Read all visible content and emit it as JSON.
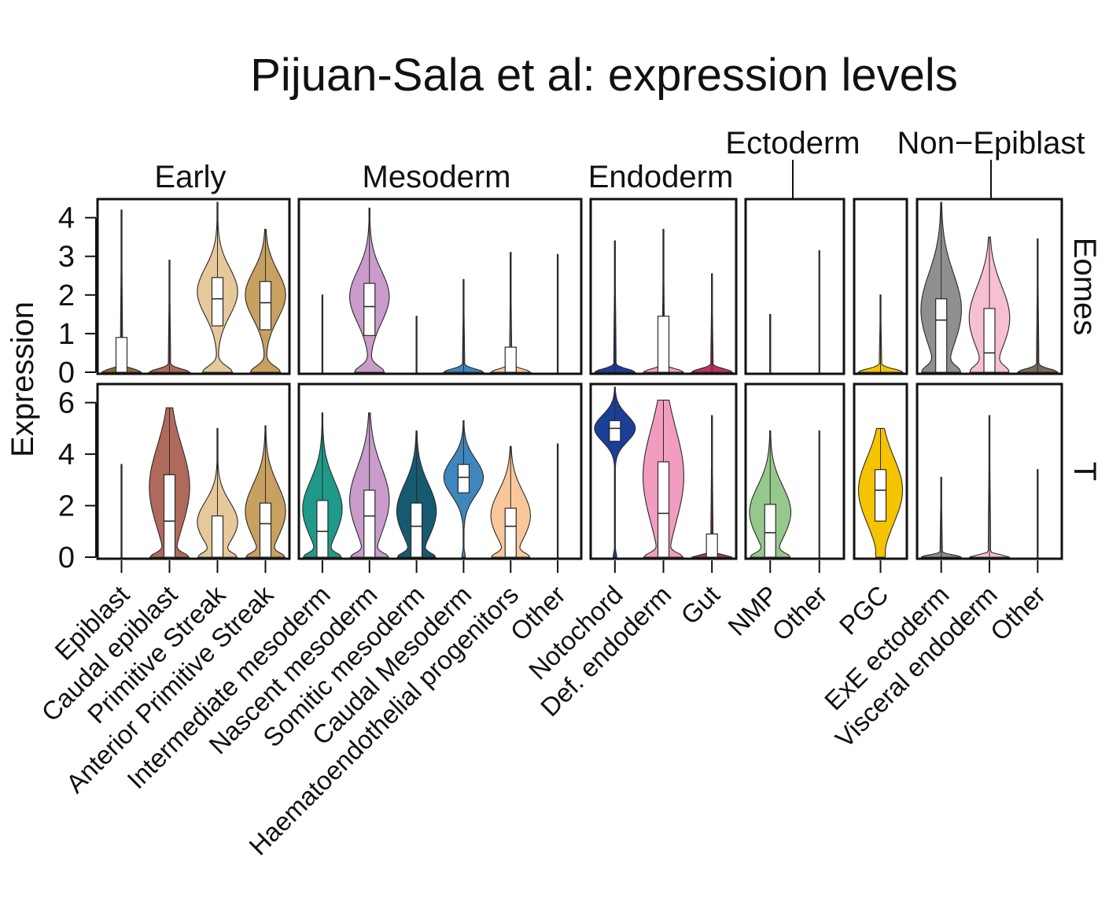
{
  "chart_data": {
    "type": "violin",
    "title": "Pijuan-Sala et al: expression levels",
    "ylabel": "Expression",
    "groups": [
      {
        "name": "Early",
        "categories": [
          "Epiblast",
          "Caudal epiblast",
          "Primitive Streak",
          "Anterior Primitive Streak"
        ]
      },
      {
        "name": "Mesoderm",
        "categories": [
          "Intermediate mesoderm",
          "Nascent mesoderm",
          "Somitic mesoderm",
          "Caudal Mesoderm",
          "Haematoendothelial progenitors",
          "Other"
        ]
      },
      {
        "name": "Endoderm",
        "categories": [
          "Notochord",
          "Def. endoderm",
          "Gut"
        ]
      },
      {
        "name": "Ectoderm",
        "categories": [
          "NMP",
          "Other"
        ]
      },
      {
        "name": "",
        "categories": [
          "PGC"
        ]
      },
      {
        "name": "Non−Epiblast",
        "categories": [
          "ExE ectoderm",
          "Visceral endoderm",
          "Other"
        ]
      }
    ],
    "colors": {
      "Epiblast": "#8c6c3c",
      "Caudal epiblast": "#b06a5c",
      "Primitive Streak": "#e6c89a",
      "Anterior Primitive Streak": "#c8a060",
      "Intermediate mesoderm": "#1f9a8a",
      "Nascent mesoderm": "#c99ccb",
      "Somitic mesoderm": "#155a70",
      "Caudal Mesoderm": "#3e86bb",
      "Haematoendothelial progenitors": "#f9c89a",
      "Mesoderm Other": "#6a5a4a",
      "Notochord": "#1a3f96",
      "Def. endoderm": "#f29cc0",
      "Gut": "#c03060",
      "NMP": "#96c88c",
      "Ectoderm Other": "#6a5a4a",
      "PGC": "#f5c400",
      "ExE ectoderm": "#8f8f8f",
      "Visceral endoderm": "#f7bfd4",
      "Non-Epiblast Other": "#7a6a5a"
    },
    "rows": [
      {
        "gene": "Eomes",
        "ylim": [
          0,
          4.4
        ],
        "yticks": [
          0,
          1,
          2,
          3,
          4
        ],
        "violins": [
          {
            "category": "Epiblast",
            "max": 4.2,
            "q1": 0,
            "median": 0,
            "q3": 0.9,
            "shape": "zero"
          },
          {
            "category": "Caudal epiblast",
            "max": 2.9,
            "q1": 0,
            "median": 0,
            "q3": 0,
            "shape": "zero"
          },
          {
            "category": "Primitive Streak",
            "max": 4.4,
            "q1": 1.2,
            "median": 1.9,
            "q3": 2.45,
            "shape": "bimodal"
          },
          {
            "category": "Anterior Primitive Streak",
            "max": 3.7,
            "q1": 1.1,
            "median": 1.8,
            "q3": 2.35,
            "shape": "bimodal"
          },
          {
            "category": "Intermediate mesoderm",
            "max": 2.0,
            "q1": 0,
            "median": 0,
            "q3": 0,
            "shape": "line"
          },
          {
            "category": "Nascent mesoderm",
            "max": 4.25,
            "q1": 0.95,
            "median": 1.7,
            "q3": 2.3,
            "shape": "bimodal"
          },
          {
            "category": "Somitic mesoderm",
            "max": 1.45,
            "q1": 0,
            "median": 0,
            "q3": 0,
            "shape": "line"
          },
          {
            "category": "Caudal Mesoderm",
            "max": 2.4,
            "q1": 0,
            "median": 0,
            "q3": 0,
            "shape": "zero"
          },
          {
            "category": "Haematoendothelial progenitors",
            "max": 3.1,
            "q1": 0,
            "median": 0,
            "q3": 0.65,
            "shape": "zero"
          },
          {
            "category": "Other",
            "max": 3.05,
            "q1": 0,
            "median": 0,
            "q3": 0,
            "shape": "line"
          },
          {
            "category": "Notochord",
            "max": 3.4,
            "q1": 0,
            "median": 0,
            "q3": 0,
            "shape": "zero"
          },
          {
            "category": "Def. endoderm",
            "max": 3.7,
            "q1": 0,
            "median": 0,
            "q3": 1.45,
            "shape": "zero"
          },
          {
            "category": "Gut",
            "max": 2.55,
            "q1": 0,
            "median": 0,
            "q3": 0,
            "shape": "zero"
          },
          {
            "category": "NMP",
            "max": 1.5,
            "q1": 0,
            "median": 0,
            "q3": 0,
            "shape": "line"
          },
          {
            "category": "Other",
            "max": 3.15,
            "q1": 0,
            "median": 0,
            "q3": 0,
            "shape": "line"
          },
          {
            "category": "PGC",
            "max": 2.0,
            "q1": 0,
            "median": 0,
            "q3": 0,
            "shape": "zero"
          },
          {
            "category": "ExE ectoderm",
            "max": 4.4,
            "q1": 0,
            "median": 1.35,
            "q3": 1.9,
            "shape": "bimodal"
          },
          {
            "category": "Visceral endoderm",
            "max": 3.5,
            "q1": 0,
            "median": 0.5,
            "q3": 1.65,
            "shape": "bimodal"
          },
          {
            "category": "Other",
            "max": 3.45,
            "q1": 0,
            "median": 0,
            "q3": 0,
            "shape": "zero"
          }
        ]
      },
      {
        "gene": "T",
        "ylim": [
          0,
          6.6
        ],
        "yticks": [
          0,
          2,
          4,
          6
        ],
        "violins": [
          {
            "category": "Epiblast",
            "max": 3.6,
            "q1": 0,
            "median": 0,
            "q3": 0,
            "shape": "line"
          },
          {
            "category": "Caudal epiblast",
            "max": 5.8,
            "q1": 0,
            "median": 1.4,
            "q3": 3.2,
            "shape": "bimodal"
          },
          {
            "category": "Primitive Streak",
            "max": 5.0,
            "q1": 0,
            "median": 0,
            "q3": 1.6,
            "shape": "bimodal"
          },
          {
            "category": "Anterior Primitive Streak",
            "max": 5.1,
            "q1": 0,
            "median": 1.3,
            "q3": 2.1,
            "shape": "bimodal"
          },
          {
            "category": "Intermediate mesoderm",
            "max": 5.6,
            "q1": 0,
            "median": 1.0,
            "q3": 2.2,
            "shape": "bimodal"
          },
          {
            "category": "Nascent mesoderm",
            "max": 5.6,
            "q1": 0,
            "median": 1.6,
            "q3": 2.6,
            "shape": "bimodal"
          },
          {
            "category": "Somitic mesoderm",
            "max": 4.9,
            "q1": 0,
            "median": 1.2,
            "q3": 2.1,
            "shape": "bimodal"
          },
          {
            "category": "Caudal Mesoderm",
            "max": 5.3,
            "q1": 2.5,
            "median": 3.1,
            "q3": 3.6,
            "shape": "unimodal"
          },
          {
            "category": "Haematoendothelial progenitors",
            "max": 4.3,
            "q1": 0,
            "median": 1.2,
            "q3": 1.9,
            "shape": "bimodal"
          },
          {
            "category": "Other",
            "max": 4.4,
            "q1": 0,
            "median": 0,
            "q3": 0,
            "shape": "line"
          },
          {
            "category": "Notochord",
            "max": 6.6,
            "q1": 4.5,
            "median": 5.0,
            "q3": 5.3,
            "shape": "unimodal"
          },
          {
            "category": "Def. endoderm",
            "max": 6.1,
            "q1": 0,
            "median": 1.7,
            "q3": 3.7,
            "shape": "bimodal"
          },
          {
            "category": "Gut",
            "max": 5.5,
            "q1": 0,
            "median": 0,
            "q3": 0.9,
            "shape": "zero"
          },
          {
            "category": "NMP",
            "max": 4.9,
            "q1": 0,
            "median": 0.95,
            "q3": 2.05,
            "shape": "bimodal"
          },
          {
            "category": "Other",
            "max": 4.9,
            "q1": 0,
            "median": 0,
            "q3": 0,
            "shape": "line"
          },
          {
            "category": "PGC",
            "max": 5.0,
            "q1": 1.4,
            "median": 2.6,
            "q3": 3.4,
            "shape": "unimodal"
          },
          {
            "category": "ExE ectoderm",
            "max": 3.1,
            "q1": 0,
            "median": 0,
            "q3": 0,
            "shape": "zero"
          },
          {
            "category": "Visceral endoderm",
            "max": 5.5,
            "q1": 0,
            "median": 0,
            "q3": 0,
            "shape": "zero"
          },
          {
            "category": "Other",
            "max": 3.4,
            "q1": 0,
            "median": 0,
            "q3": 0,
            "shape": "line"
          }
        ]
      }
    ]
  }
}
